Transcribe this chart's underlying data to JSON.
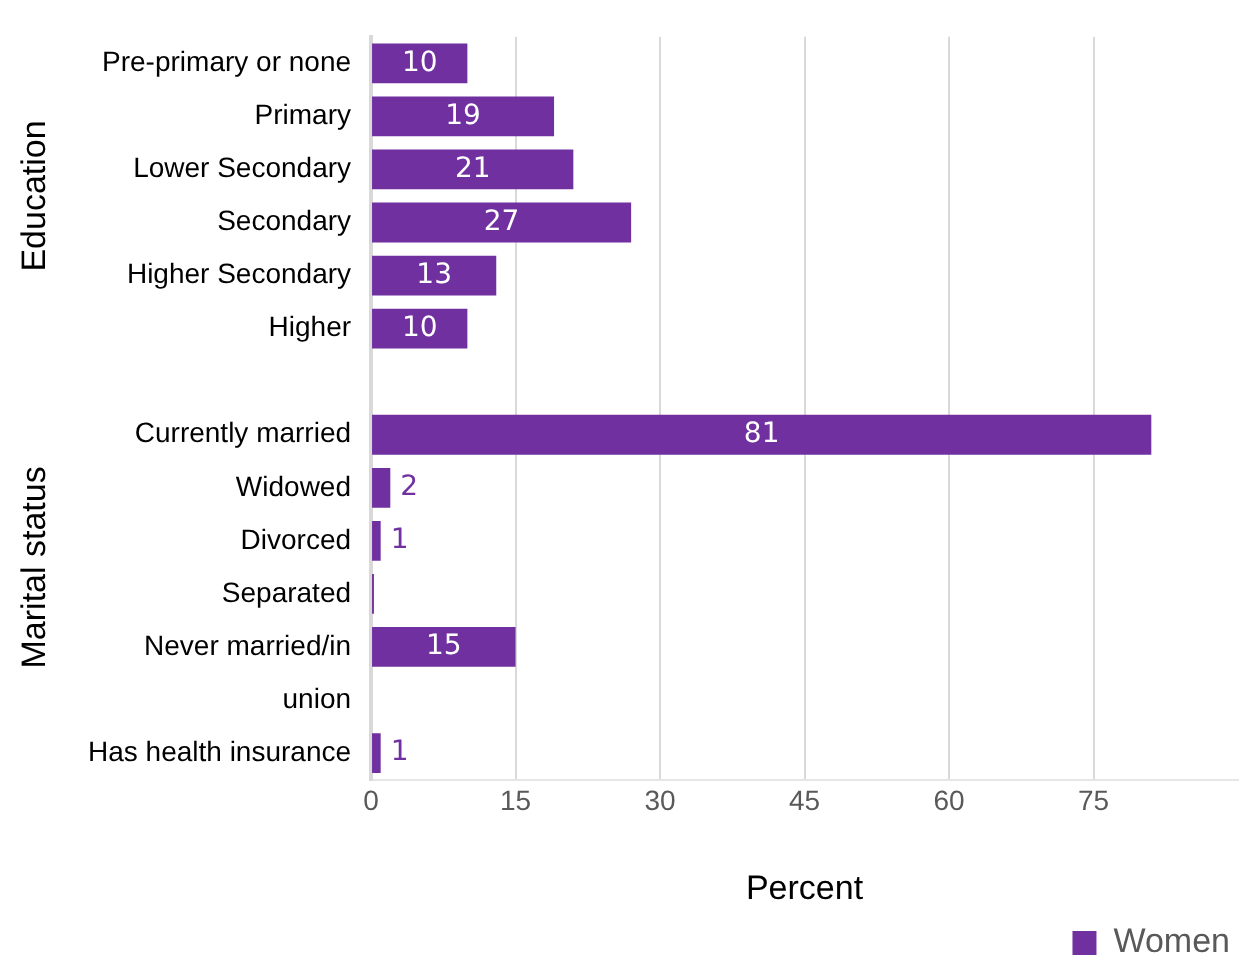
{
  "chart_data": {
    "type": "bar",
    "orientation": "horizontal",
    "xlabel": "Percent",
    "categories": [
      "Pre-primary or none",
      "Primary",
      "Lower Secondary",
      "Secondary",
      "Higher Secondary",
      "Higher",
      null,
      "Currently married",
      "Widowed",
      "Divorced",
      "Separated",
      "Never married/in",
      "union",
      "Has health insurance"
    ],
    "series": [
      {
        "name": "Women",
        "color": "#7030a0",
        "values": [
          10,
          19,
          21,
          27,
          13,
          10,
          null,
          81,
          2,
          1,
          0.3,
          15,
          null,
          1
        ],
        "value_labels": [
          "10",
          "19",
          "21",
          "27",
          "13",
          "10",
          null,
          "81",
          "2",
          "1",
          null,
          "15",
          null,
          "1"
        ]
      }
    ],
    "xlim": [
      0,
      90
    ],
    "xticks": [
      0,
      15,
      30,
      45,
      60,
      75
    ],
    "grid": "x",
    "legend": "bottom right",
    "annotations": [
      "Education",
      "Marital status"
    ]
  }
}
